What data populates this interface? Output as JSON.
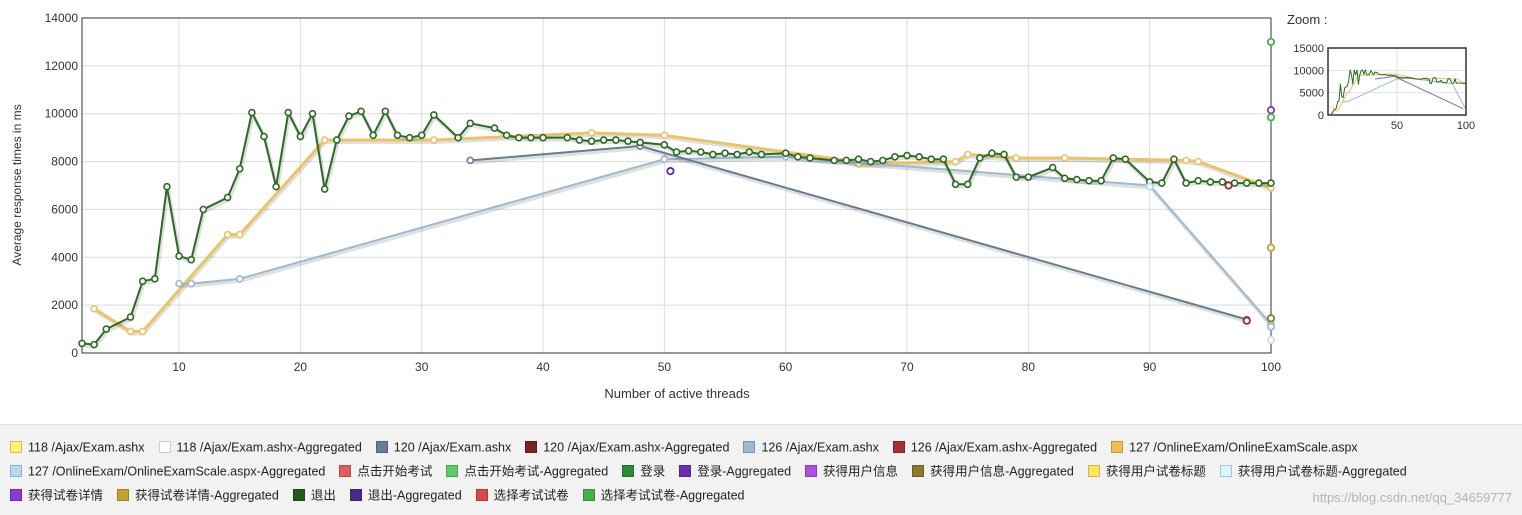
{
  "chart_data": {
    "type": "line",
    "xlabel": "Number of active threads",
    "ylabel": "Average response times in ms",
    "xlim": [
      2,
      100
    ],
    "ylim": [
      0,
      14000
    ],
    "xticks": [
      10,
      20,
      30,
      40,
      50,
      60,
      70,
      80,
      90,
      100
    ],
    "yticks": [
      0,
      2000,
      4000,
      6000,
      8000,
      10000,
      12000,
      14000
    ],
    "grid": true,
    "legend_position": "bottom",
    "series": [
      {
        "name": "127 /OnlineExam/OnlineExamScale.aspx",
        "color": "#e8c46a",
        "x": [
          3,
          6,
          7,
          14,
          15,
          22,
          31,
          44,
          50,
          65,
          66,
          74,
          75,
          79,
          83,
          93,
          94,
          100
        ],
        "y": [
          1850,
          900,
          900,
          4950,
          4950,
          8900,
          8900,
          9200,
          9100,
          8050,
          7900,
          8000,
          8300,
          8150,
          8150,
          8050,
          8000,
          6900
        ]
      },
      {
        "name": "126 /Ajax/Exam.ashx",
        "color": "#9fb9d1",
        "x": [
          10,
          11,
          15,
          50,
          60,
          90,
          100
        ],
        "y": [
          2900,
          2900,
          3100,
          8100,
          8200,
          7000,
          1200
        ]
      },
      {
        "name": "120 /Ajax/Exam.ashx",
        "color": "#667d93",
        "x": [
          34,
          48,
          98
        ],
        "y": [
          8050,
          8650,
          1400
        ]
      },
      {
        "name": "退出",
        "color": "#2c6b24",
        "x": [
          2,
          3,
          4,
          6,
          7,
          8,
          9,
          10,
          11,
          12,
          14,
          15,
          16,
          17,
          18,
          19,
          20,
          21,
          22,
          23,
          24,
          25,
          26,
          27,
          28,
          29,
          30,
          31,
          33,
          34,
          36,
          37,
          38,
          39,
          40,
          42,
          43,
          44,
          45,
          46,
          47,
          48,
          50,
          51,
          52,
          53,
          54,
          55,
          56,
          57,
          58,
          60,
          61,
          62,
          64,
          65,
          66,
          67,
          68,
          69,
          70,
          71,
          72,
          73,
          74,
          75,
          76,
          77,
          78,
          79,
          80,
          82,
          83,
          84,
          85,
          86,
          87,
          88,
          90,
          91,
          92,
          93,
          94,
          95,
          96,
          97,
          98,
          99,
          100
        ],
        "y": [
          400,
          350,
          1000,
          1500,
          3000,
          3100,
          6950,
          4050,
          3900,
          6000,
          6500,
          7700,
          10050,
          9050,
          6950,
          10050,
          9050,
          10000,
          6850,
          8900,
          9900,
          10100,
          9100,
          10100,
          9100,
          9000,
          9100,
          9950,
          9000,
          9600,
          9400,
          9100,
          9000,
          9000,
          9000,
          9000,
          8900,
          8850,
          8900,
          8900,
          8850,
          8800,
          8700,
          8400,
          8450,
          8400,
          8300,
          8350,
          8300,
          8400,
          8300,
          8350,
          8200,
          8150,
          8050,
          8050,
          8100,
          8000,
          8050,
          8200,
          8250,
          8200,
          8100,
          8100,
          7050,
          7050,
          8150,
          8350,
          8300,
          7350,
          7350,
          7750,
          7300,
          7250,
          7200,
          7200,
          8150,
          8100,
          7150,
          7100,
          8100,
          7100,
          7200,
          7150,
          7150,
          7100,
          7100,
          7100,
          7100
        ]
      }
    ],
    "end_points": [
      {
        "x": 100,
        "y": 13000,
        "color": "#4caf50"
      },
      {
        "x": 100,
        "y": 10150,
        "color": "#7b3fb8"
      },
      {
        "x": 100,
        "y": 9850,
        "color": "#4caf50"
      },
      {
        "x": 100,
        "y": 4400,
        "color": "#c9a032"
      },
      {
        "x": 100,
        "y": 1450,
        "color": "#8a7a2a"
      },
      {
        "x": 100,
        "y": 1100,
        "color": "#9fb9d1"
      },
      {
        "x": 100,
        "y": 550,
        "color": "#dddddd"
      },
      {
        "x": 98,
        "y": 1350,
        "color": "#9a2b2b"
      },
      {
        "x": 50.5,
        "y": 7600,
        "color": "#5a2a90"
      },
      {
        "x": 96.5,
        "y": 7000,
        "color": "#9a2b2b"
      },
      {
        "x": 90,
        "y": 6950,
        "color": "#b8d8ef"
      }
    ]
  },
  "zoom": {
    "label": "Zoom :",
    "xlim": [
      0,
      100
    ],
    "ylim": [
      0,
      15000
    ],
    "xticks": [
      50,
      100
    ],
    "yticks": [
      0,
      5000,
      10000,
      15000
    ]
  },
  "legend": [
    {
      "label": "118 /Ajax/Exam.ashx",
      "color": "#fff176"
    },
    {
      "label": "118 /Ajax/Exam.ashx-Aggregated",
      "color": "#ffffff"
    },
    {
      "label": "120 /Ajax/Exam.ashx",
      "color": "#667d93"
    },
    {
      "label": "120 /Ajax/Exam.ashx-Aggregated",
      "color": "#7a2323"
    },
    {
      "label": "126 /Ajax/Exam.ashx",
      "color": "#9fb9d1"
    },
    {
      "label": "126 /Ajax/Exam.ashx-Aggregated",
      "color": "#a33232"
    },
    {
      "label": "127 /OnlineExam/OnlineExamScale.aspx",
      "color": "#f0be4e"
    },
    {
      "label": "127 /OnlineExam/OnlineExamScale.aspx-Aggregated",
      "color": "#b8d8ef"
    },
    {
      "label": "点击开始考试",
      "color": "#e06060"
    },
    {
      "label": "点击开始考试-Aggregated",
      "color": "#5ccc6a"
    },
    {
      "label": "登录",
      "color": "#2e8b3a"
    },
    {
      "label": "登录-Aggregated",
      "color": "#6a2fb0"
    },
    {
      "label": "获得用户信息",
      "color": "#b04ee0"
    },
    {
      "label": "获得用户信息-Aggregated",
      "color": "#8a7a2a"
    },
    {
      "label": "获得用户试卷标题",
      "color": "#ffe45a"
    },
    {
      "label": "获得用户试卷标题-Aggregated",
      "color": "#d9f7fb"
    },
    {
      "label": "获得试卷详情",
      "color": "#8a3ad0"
    },
    {
      "label": "获得试卷详情-Aggregated",
      "color": "#c9a032"
    },
    {
      "label": "退出",
      "color": "#1e5a1a"
    },
    {
      "label": "退出-Aggregated",
      "color": "#4a2a88"
    },
    {
      "label": "选择考试试卷",
      "color": "#d84a4a"
    },
    {
      "label": "选择考试试卷-Aggregated",
      "color": "#44b04e"
    }
  ],
  "watermark": "https://blog.csdn.net/qq_34659777"
}
